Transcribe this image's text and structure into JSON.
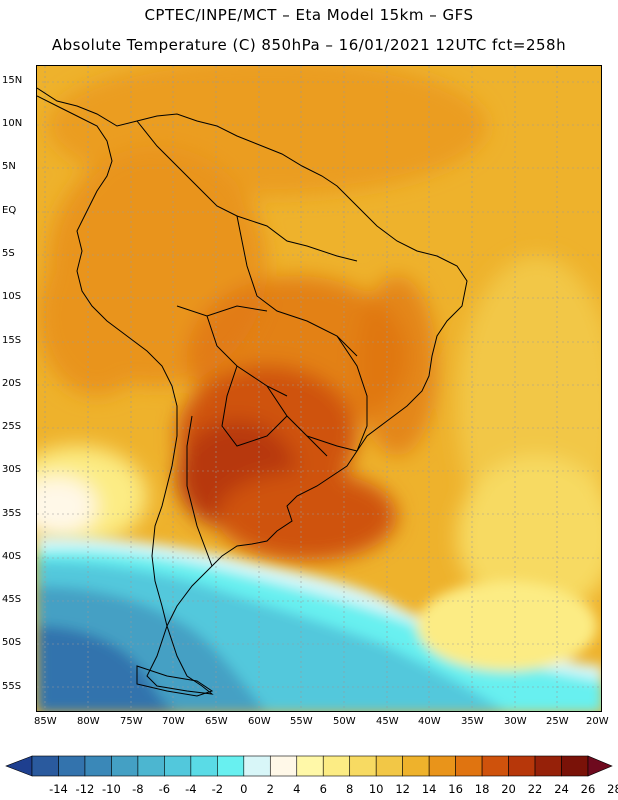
{
  "header": {
    "line1": "CPTEC/INPE/MCT –  Eta Model 15km – GFS",
    "line2": "Absolute Temperature (C) 850hPa – 16/01/2021 12UTC fct=258h"
  },
  "map": {
    "lat_labels": [
      "15N",
      "10N",
      "5N",
      "EQ",
      "5S",
      "10S",
      "15S",
      "20S",
      "25S",
      "30S",
      "35S",
      "40S",
      "45S",
      "50S",
      "55S"
    ],
    "lon_labels": [
      "85W",
      "80W",
      "75W",
      "70W",
      "65W",
      "60W",
      "55W",
      "50W",
      "45W",
      "40W",
      "35W",
      "30W",
      "25W",
      "20W"
    ]
  },
  "colorbar": {
    "labels": [
      "-14",
      "-12",
      "-10",
      "-8",
      "-6",
      "-4",
      "-2",
      "0",
      "2",
      "4",
      "6",
      "8",
      "10",
      "12",
      "14",
      "16",
      "18",
      "20",
      "22",
      "24",
      "26",
      "28"
    ],
    "colors": [
      "#1e3f8f",
      "#2a5a9e",
      "#3373ad",
      "#3a88b8",
      "#44a0c4",
      "#4cb6d0",
      "#52c8dc",
      "#5adbe6",
      "#68f0f0",
      "#d8f6f8",
      "#fff8e8",
      "#fff8a8",
      "#fcec84",
      "#f7da62",
      "#f2c746",
      "#eeb22c",
      "#e9941a",
      "#e07410",
      "#cf520c",
      "#b7370a",
      "#962109",
      "#7a1208",
      "#6e0a1e"
    ]
  }
}
